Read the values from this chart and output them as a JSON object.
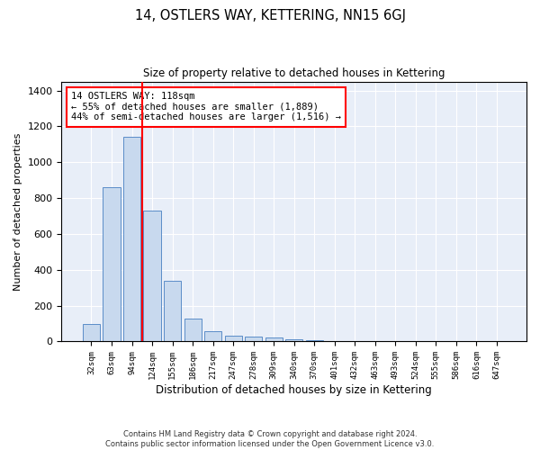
{
  "title": "14, OSTLERS WAY, KETTERING, NN15 6GJ",
  "subtitle": "Size of property relative to detached houses in Kettering",
  "xlabel": "Distribution of detached houses by size in Kettering",
  "ylabel": "Number of detached properties",
  "categories": [
    "32sqm",
    "63sqm",
    "94sqm",
    "124sqm",
    "155sqm",
    "186sqm",
    "217sqm",
    "247sqm",
    "278sqm",
    "309sqm",
    "340sqm",
    "370sqm",
    "401sqm",
    "432sqm",
    "463sqm",
    "493sqm",
    "524sqm",
    "555sqm",
    "586sqm",
    "616sqm",
    "647sqm"
  ],
  "bar_color": "#c8d9ee",
  "bar_edge_color": "#5b8dc8",
  "vline_color": "red",
  "annotation_text": "14 OSTLERS WAY: 118sqm\n← 55% of detached houses are smaller (1,889)\n44% of semi-detached houses are larger (1,516) →",
  "annotation_box_color": "white",
  "annotation_box_edge_color": "red",
  "ylim": [
    0,
    1450
  ],
  "yticks": [
    0,
    200,
    400,
    600,
    800,
    1000,
    1200,
    1400
  ],
  "footer_line1": "Contains HM Land Registry data © Crown copyright and database right 2024.",
  "footer_line2": "Contains public sector information licensed under the Open Government Licence v3.0.",
  "background_color": "#e8eef8",
  "all_values": [
    100,
    860,
    1140,
    730,
    340,
    130,
    60,
    30,
    25,
    20,
    10,
    5,
    0,
    0,
    0,
    0,
    0,
    0,
    0,
    0,
    0
  ],
  "vline_index": 2.5
}
